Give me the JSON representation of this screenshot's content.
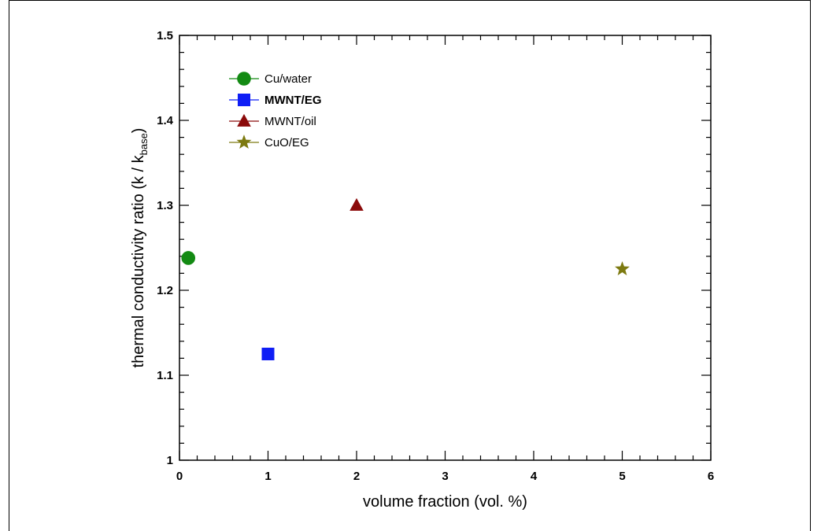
{
  "chart_data": {
    "type": "scatter",
    "xlabel": "volume fraction (vol. %)",
    "ylabel_main": "thermal conductivity ratio  (k / k",
    "ylabel_sub": "base",
    "ylabel_end": ")",
    "xlim": [
      0,
      6
    ],
    "ylim": [
      1,
      1.5
    ],
    "x_ticks": [
      "0",
      "1",
      "2",
      "3",
      "4",
      "5",
      "6"
    ],
    "y_ticks": [
      "1",
      "1.1",
      "1.2",
      "1.3",
      "1.4",
      "1.5"
    ],
    "grid": false,
    "legend_position": "top-left",
    "series": [
      {
        "name": "Cu/water",
        "marker": "circle",
        "color": "#138a13",
        "x": [
          0.1
        ],
        "y": [
          1.238
        ]
      },
      {
        "name": "MWNT/EG",
        "marker": "square",
        "color": "#0f1ef5",
        "x": [
          1.0
        ],
        "y": [
          1.125
        ]
      },
      {
        "name": "MWNT/oil",
        "marker": "triangle",
        "color": "#8b0a0a",
        "x": [
          2.0
        ],
        "y": [
          1.3
        ]
      },
      {
        "name": "CuO/EG",
        "marker": "star",
        "color": "#7d7a10",
        "x": [
          5.0
        ],
        "y": [
          1.225
        ]
      }
    ]
  }
}
